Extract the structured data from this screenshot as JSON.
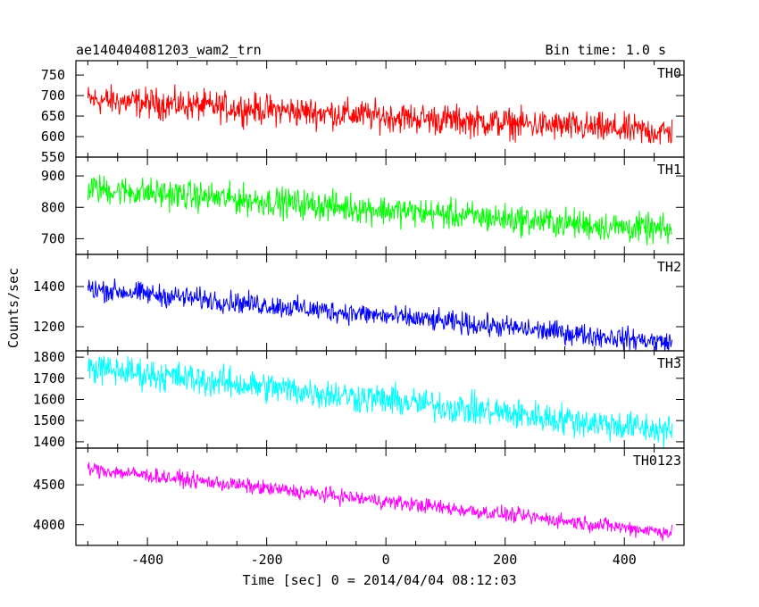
{
  "header": {
    "title": "ae140404081203_wam2_trn",
    "bin_time": "Bin time: 1.0 s"
  },
  "chart_data": {
    "type": "line",
    "xlabel": "Time [sec] 0 = 2014/04/04 08:12:03",
    "ylabel": "Counts/sec",
    "xlim": [
      -520,
      500
    ],
    "xticks": [
      -400,
      -200,
      0,
      200,
      400
    ],
    "data_x_range": [
      -500,
      480
    ],
    "grid": false,
    "legend": "none",
    "panels": [
      {
        "name": "TH0",
        "color": "#ff0000",
        "ylim": [
          550,
          785
        ],
        "yticks": [
          550,
          600,
          650,
          700,
          750
        ],
        "trend": [
          {
            "x": -500,
            "y": 690
          },
          {
            "x": 480,
            "y": 610
          }
        ],
        "noise_amplitude": 55
      },
      {
        "name": "TH1",
        "color": "#00ff00",
        "ylim": [
          650,
          960
        ],
        "yticks": [
          700,
          800,
          900
        ],
        "trend": [
          {
            "x": -500,
            "y": 860
          },
          {
            "x": 480,
            "y": 725
          }
        ],
        "noise_amplitude": 70
      },
      {
        "name": "TH2",
        "color": "#0000ff",
        "ylim": [
          1080,
          1560
        ],
        "yticks": [
          1200,
          1400
        ],
        "trend": [
          {
            "x": -500,
            "y": 1390
          },
          {
            "x": 480,
            "y": 1120
          }
        ],
        "noise_amplitude": 80
      },
      {
        "name": "TH3",
        "color": "#00ffff",
        "ylim": [
          1370,
          1830
        ],
        "yticks": [
          1400,
          1500,
          1600,
          1700,
          1800
        ],
        "trend": [
          {
            "x": -500,
            "y": 1750
          },
          {
            "x": 480,
            "y": 1450
          }
        ],
        "noise_amplitude": 110
      },
      {
        "name": "TH0123",
        "color": "#ff00ff",
        "ylim": [
          3740,
          4960
        ],
        "yticks": [
          4000,
          4500
        ],
        "trend": [
          {
            "x": -500,
            "y": 4700
          },
          {
            "x": 480,
            "y": 3900
          }
        ],
        "noise_amplitude": 140
      }
    ]
  }
}
